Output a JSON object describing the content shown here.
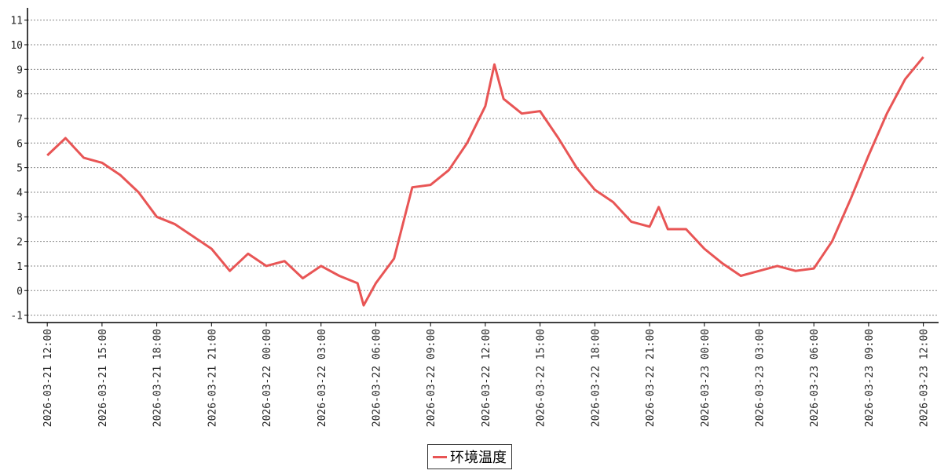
{
  "chart_data": {
    "type": "line",
    "x": [
      "2026-03-21 12:00",
      "2026-03-21 13:00",
      "2026-03-21 14:00",
      "2026-03-21 15:00",
      "2026-03-21 16:00",
      "2026-03-21 17:00",
      "2026-03-21 18:00",
      "2026-03-21 19:00",
      "2026-03-21 20:00",
      "2026-03-21 21:00",
      "2026-03-21 22:00",
      "2026-03-21 23:00",
      "2026-03-22 00:00",
      "2026-03-22 01:00",
      "2026-03-22 02:00",
      "2026-03-22 03:00",
      "2026-03-22 04:00",
      "2026-03-22 05:00",
      "2026-03-22 05:20",
      "2026-03-22 06:00",
      "2026-03-22 07:00",
      "2026-03-22 08:00",
      "2026-03-22 09:00",
      "2026-03-22 10:00",
      "2026-03-22 11:00",
      "2026-03-22 12:00",
      "2026-03-22 12:30",
      "2026-03-22 13:00",
      "2026-03-22 14:00",
      "2026-03-22 15:00",
      "2026-03-22 16:00",
      "2026-03-22 17:00",
      "2026-03-22 18:00",
      "2026-03-22 19:00",
      "2026-03-22 20:00",
      "2026-03-22 21:00",
      "2026-03-22 21:30",
      "2026-03-22 22:00",
      "2026-03-22 23:00",
      "2026-03-23 00:00",
      "2026-03-23 01:00",
      "2026-03-23 02:00",
      "2026-03-23 03:00",
      "2026-03-23 04:00",
      "2026-03-23 05:00",
      "2026-03-23 06:00",
      "2026-03-23 07:00",
      "2026-03-23 08:00",
      "2026-03-23 09:00",
      "2026-03-23 10:00",
      "2026-03-23 11:00",
      "2026-03-23 12:00"
    ],
    "series": [
      {
        "name": "环境温度",
        "color": "#e85555",
        "values": [
          5.5,
          6.2,
          5.4,
          5.2,
          4.7,
          4.0,
          3.0,
          2.7,
          2.2,
          1.7,
          0.8,
          1.5,
          1.0,
          1.2,
          0.5,
          1.0,
          0.6,
          0.3,
          -0.6,
          0.3,
          1.3,
          4.2,
          4.3,
          4.9,
          6.0,
          7.5,
          9.2,
          7.8,
          7.2,
          7.3,
          6.2,
          5.0,
          4.1,
          3.6,
          2.8,
          2.6,
          3.4,
          2.5,
          2.5,
          1.7,
          1.1,
          0.6,
          0.8,
          1.0,
          0.8,
          0.9,
          2.0,
          3.7,
          5.5,
          7.2,
          8.6,
          9.5
        ]
      }
    ],
    "xlim": [
      "2026-03-21 10:55",
      "2026-03-23 12:50"
    ],
    "xticks": [
      "2026-03-21 12:00",
      "2026-03-21 15:00",
      "2026-03-21 18:00",
      "2026-03-21 21:00",
      "2026-03-22 00:00",
      "2026-03-22 03:00",
      "2026-03-22 06:00",
      "2026-03-22 09:00",
      "2026-03-22 12:00",
      "2026-03-22 15:00",
      "2026-03-22 18:00",
      "2026-03-22 21:00",
      "2026-03-23 00:00",
      "2026-03-23 03:00",
      "2026-03-23 06:00",
      "2026-03-23 09:00",
      "2026-03-23 12:00"
    ],
    "ylim": [
      -1.3,
      11.5
    ],
    "yticks": [
      -1,
      0,
      1,
      2,
      3,
      4,
      5,
      6,
      7,
      8,
      9,
      10,
      11
    ],
    "grid": true,
    "legend": "bottom"
  }
}
